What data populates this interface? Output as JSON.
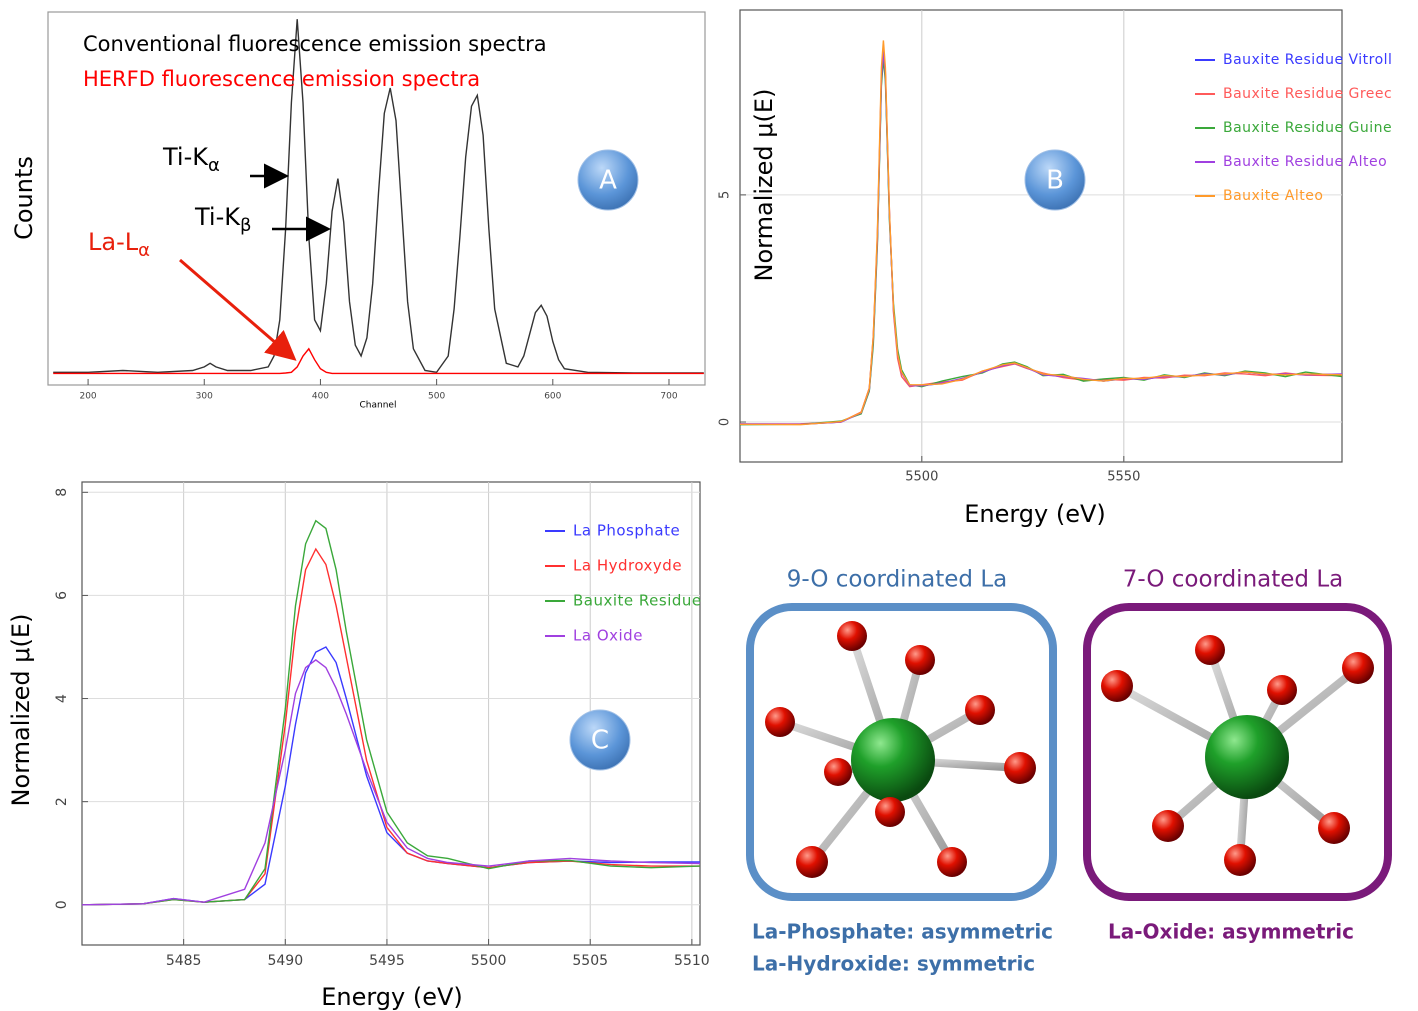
{
  "chart_data": [
    {
      "type": "line",
      "panel_label": "A",
      "x_label": "Channel",
      "y_label": "Counts",
      "x": [
        170,
        200,
        230,
        260,
        290,
        300,
        305,
        310,
        320,
        340,
        355,
        360,
        365,
        370,
        375,
        380,
        385,
        390,
        395,
        400,
        405,
        410,
        415,
        420,
        425,
        430,
        435,
        440,
        445,
        450,
        455,
        460,
        465,
        470,
        475,
        480,
        490,
        500,
        510,
        515,
        520,
        525,
        530,
        535,
        540,
        545,
        550,
        560,
        570,
        575,
        580,
        585,
        590,
        595,
        600,
        605,
        610,
        630,
        670,
        730
      ],
      "xlim": [
        165.5,
        731
      ],
      "ylim": [
        -3,
        100
      ],
      "xticks": [
        200,
        300,
        400,
        500,
        600,
        700
      ],
      "series": [
        {
          "name": "Conventional fluorescence emission spectra",
          "color": "#333333",
          "values": [
            0.5,
            0.5,
            1,
            0.5,
            1,
            2,
            3,
            2,
            1,
            1,
            2,
            5,
            15,
            40,
            75,
            98,
            75,
            38,
            15,
            12,
            25,
            45,
            54,
            42,
            20,
            8,
            5,
            10,
            25,
            50,
            72,
            79,
            70,
            45,
            20,
            7,
            1,
            0.5,
            5,
            18,
            38,
            60,
            74,
            77,
            66,
            40,
            18,
            3,
            2,
            5,
            11,
            17,
            19,
            16,
            9,
            4,
            1.5,
            0.5,
            0.3,
            0.3
          ]
        },
        {
          "name": "HERFD fluorescence emission spectra",
          "color": "#ff0000",
          "values": [
            0.2,
            0.2,
            0.2,
            0.2,
            0.2,
            0.2,
            0.2,
            0.2,
            0.2,
            0.2,
            0.2,
            0.2,
            0.2,
            0.3,
            0.5,
            2,
            5,
            7,
            4,
            1.5,
            0.5,
            0.2,
            0.2,
            0.2,
            0.2,
            0.2,
            0.2,
            0.2,
            0.2,
            0.2,
            0.2,
            0.2,
            0.2,
            0.2,
            0.2,
            0.2,
            0.2,
            0.2,
            0.2,
            0.2,
            0.2,
            0.2,
            0.2,
            0.2,
            0.2,
            0.2,
            0.2,
            0.2,
            0.2,
            0.2,
            0.2,
            0.2,
            0.2,
            0.2,
            0.2,
            0.2,
            0.2,
            0.2,
            0.2,
            0.2
          ]
        }
      ],
      "annotations": [
        {
          "text": "Ti-K",
          "sub": "α"
        },
        {
          "text": "Ti-K",
          "sub": "β"
        },
        {
          "text": "La-L",
          "sub": "α"
        }
      ]
    },
    {
      "type": "line",
      "panel_label": "B",
      "x_label": "Energy (eV)",
      "y_label": "Normalized μ(E)",
      "grid": true,
      "x": [
        5455,
        5470,
        5480,
        5485,
        5487,
        5488,
        5489,
        5490,
        5490.5,
        5491,
        5492,
        5493,
        5494,
        5495,
        5497,
        5500,
        5505,
        5510,
        5515,
        5520,
        5523,
        5526,
        5530,
        5535,
        5540,
        5545,
        5550,
        5555,
        5560,
        5565,
        5570,
        5575,
        5580,
        5585,
        5590,
        5595,
        5604
      ],
      "xlim": [
        5455,
        5604
      ],
      "ylim": [
        -0.88,
        9.07
      ],
      "xticks": [
        5500,
        5550
      ],
      "yticks": [
        0,
        5
      ],
      "series": [
        {
          "name": "Bauxite Residue Vitroll",
          "color": "#3a3aff",
          "values": [
            -0.05,
            -0.05,
            0,
            0.2,
            0.7,
            1.8,
            4,
            7.5,
            8.1,
            7.6,
            4.5,
            2.5,
            1.5,
            1.1,
            0.8,
            0.8,
            0.85,
            0.95,
            1.1,
            1.25,
            1.3,
            1.2,
            1.05,
            1,
            0.95,
            0.9,
            0.95,
            0.95,
            1,
            1,
            1.05,
            1.05,
            1.1,
            1.05,
            1.05,
            1.05,
            1.05
          ]
        },
        {
          "name": "Bauxite Residue Greec",
          "color": "#ff5a5a",
          "values": [
            -0.05,
            -0.04,
            0,
            0.22,
            0.75,
            1.9,
            4.1,
            7.6,
            8.2,
            7.7,
            4.6,
            2.4,
            1.4,
            1.0,
            0.78,
            0.82,
            0.88,
            0.92,
            1.12,
            1.22,
            1.28,
            1.18,
            1.08,
            0.98,
            0.92,
            0.94,
            0.92,
            0.98,
            0.97,
            1.03,
            1.02,
            1.08,
            1.06,
            1.02,
            1.08,
            1.03,
            1.02
          ]
        },
        {
          "name": "Bauxite Residue Guine",
          "color": "#3aa83a",
          "values": [
            -0.06,
            -0.05,
            0.02,
            0.18,
            0.68,
            1.7,
            3.9,
            7.4,
            8.0,
            7.5,
            4.4,
            2.6,
            1.6,
            1.15,
            0.82,
            0.78,
            0.9,
            1.0,
            1.08,
            1.28,
            1.32,
            1.22,
            1.02,
            1.05,
            0.9,
            0.95,
            0.98,
            0.92,
            1.04,
            0.98,
            1.08,
            1.02,
            1.12,
            1.08,
            1.0,
            1.1,
            1.0
          ]
        },
        {
          "name": "Bauxite Residue Alteo",
          "color": "#a040e0",
          "values": [
            -0.04,
            -0.05,
            0,
            0.2,
            0.72,
            1.85,
            4.05,
            7.55,
            8.15,
            7.65,
            4.55,
            2.45,
            1.5,
            1.08,
            0.8,
            0.8,
            0.86,
            0.96,
            1.1,
            1.24,
            1.29,
            1.19,
            1.04,
            1.0,
            0.96,
            0.9,
            0.96,
            0.94,
            1.0,
            1.0,
            1.06,
            1.04,
            1.1,
            1.05,
            1.06,
            1.04,
            1.06
          ]
        },
        {
          "name": "Bauxite Alteo",
          "color": "#ff9a2a",
          "values": [
            -0.05,
            -0.06,
            0.01,
            0.21,
            0.74,
            1.9,
            4.2,
            7.8,
            8.4,
            7.8,
            4.6,
            2.5,
            1.5,
            1.1,
            0.82,
            0.82,
            0.84,
            0.94,
            1.12,
            1.26,
            1.3,
            1.2,
            1.06,
            1.02,
            0.94,
            0.9,
            0.96,
            0.96,
            1.02,
            1.0,
            1.04,
            1.06,
            1.1,
            1.06,
            1.04,
            1.06,
            1.04
          ]
        }
      ]
    },
    {
      "type": "line",
      "panel_label": "C",
      "x_label": "Energy (eV)",
      "y_label": "Normalized μ(E)",
      "grid": true,
      "x": [
        5480,
        5483,
        5484.5,
        5486,
        5488,
        5489,
        5490,
        5490.5,
        5491,
        5491.5,
        5492,
        5492.5,
        5493,
        5494,
        5495,
        5496,
        5497,
        5498,
        5500,
        5502,
        5504,
        5506,
        5508,
        5510.4
      ],
      "xlim": [
        5480,
        5510.4
      ],
      "ylim": [
        -0.78,
        8.2
      ],
      "xticks": [
        5485,
        5490,
        5495,
        5500,
        5505,
        5510
      ],
      "yticks": [
        0,
        2,
        4,
        6,
        8
      ],
      "series": [
        {
          "name": "La Phosphate",
          "color": "#3a3aff",
          "values": [
            0,
            0.02,
            0.12,
            0.05,
            0.1,
            0.4,
            2.3,
            3.5,
            4.5,
            4.9,
            5.0,
            4.7,
            4.0,
            2.5,
            1.4,
            1.0,
            0.85,
            0.8,
            0.72,
            0.82,
            0.85,
            0.82,
            0.83,
            0.83
          ]
        },
        {
          "name": "La Hydroxyde",
          "color": "#ff3030",
          "values": [
            0,
            0.02,
            0.1,
            0.05,
            0.1,
            0.6,
            3.5,
            5.3,
            6.5,
            6.9,
            6.6,
            5.8,
            4.8,
            2.8,
            1.5,
            1.0,
            0.85,
            0.8,
            0.72,
            0.82,
            0.85,
            0.78,
            0.75,
            0.75
          ]
        },
        {
          "name": "Bauxite Residue",
          "color": "#3aa83a",
          "values": [
            0,
            0.02,
            0.1,
            0.05,
            0.1,
            0.7,
            3.8,
            5.8,
            7.0,
            7.45,
            7.3,
            6.5,
            5.3,
            3.2,
            1.8,
            1.2,
            0.95,
            0.9,
            0.7,
            0.85,
            0.86,
            0.75,
            0.72,
            0.75
          ]
        },
        {
          "name": "La Oxide",
          "color": "#a040e0",
          "values": [
            0,
            0.02,
            0.12,
            0.05,
            0.3,
            1.2,
            3.0,
            4.1,
            4.6,
            4.75,
            4.6,
            4.2,
            3.7,
            2.6,
            1.6,
            1.1,
            0.9,
            0.82,
            0.75,
            0.85,
            0.9,
            0.85,
            0.82,
            0.8
          ]
        }
      ]
    }
  ],
  "structures": [
    {
      "title": "9-O coordinated La",
      "captions": [
        "La-Phosphate: asymmetric",
        "La-Hydroxide: symmetric"
      ]
    },
    {
      "title": "7-O coordinated La",
      "captions": [
        "La-Oxide: asymmetric"
      ]
    }
  ]
}
